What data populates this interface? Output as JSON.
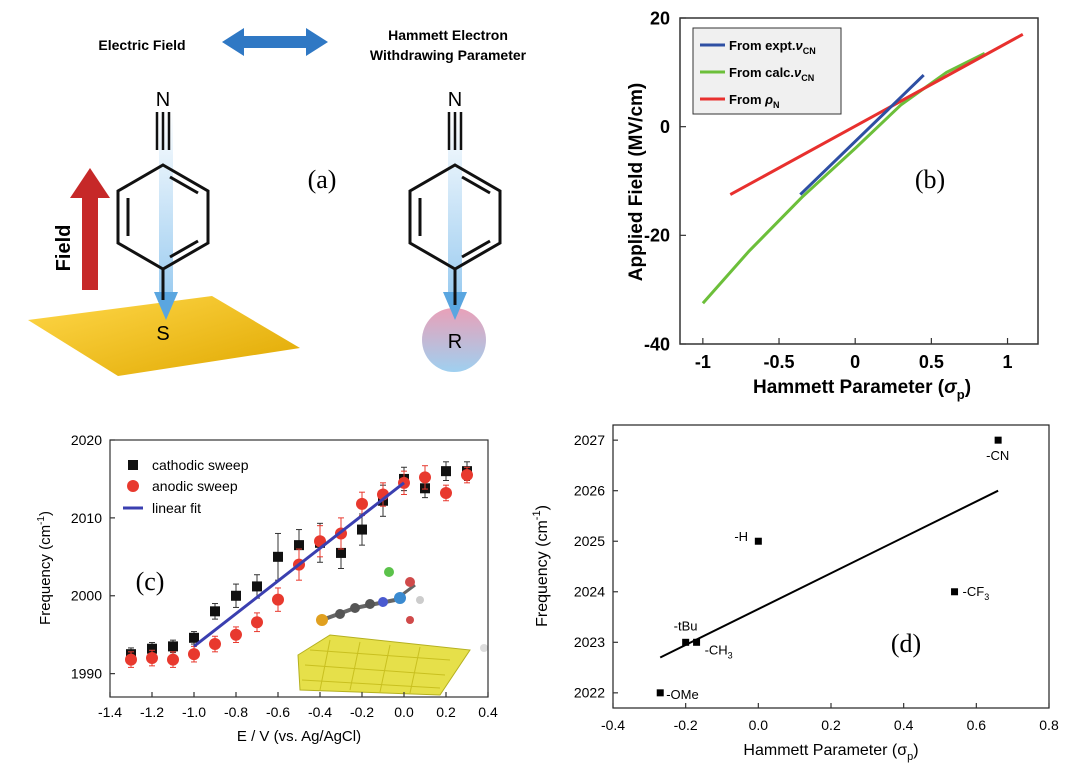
{
  "panel_a": {
    "label": "(a)",
    "left_title": "Electric Field",
    "right_title_line1": "Hammett Electron",
    "right_title_line2": "Withdrawing Parameter",
    "field_label": "Field",
    "nitrogen_left": "N",
    "nitrogen_right": "N",
    "sulfur": "S",
    "r_group": "R",
    "colors": {
      "surface": "#f2c21b",
      "field_arrow": "#c62828",
      "double_arrow": "#2f78c4",
      "bond_glow": "#8ec5ee"
    }
  },
  "chart_data": [
    {
      "id": "b",
      "type": "line",
      "panel_label": "(b)",
      "xlabel": "Hammett Parameter (",
      "xlabel_sym": "σ",
      "xlabel_sub": "p",
      "xlabel_close": ")",
      "ylabel": "Applied Field (MV/cm)",
      "xlim": [
        -1.15,
        1.2
      ],
      "ylim": [
        -40,
        20
      ],
      "xticks": [
        -1,
        -0.5,
        0,
        0.5,
        1
      ],
      "xtick_labels": [
        "-1",
        "-0.5",
        "0",
        "0.5",
        "1"
      ],
      "yticks": [
        -40,
        -20,
        0,
        20
      ],
      "ytick_labels": [
        "-40",
        "-20",
        "0",
        "20"
      ],
      "legend_position": "top-left",
      "legend": [
        {
          "prefix": "From expt.",
          "sym": "ν",
          "sub": "CN",
          "color": "#2e4fa3"
        },
        {
          "prefix": "From calc.",
          "sym": "ν",
          "sub": "CN",
          "color": "#6cbf3a"
        },
        {
          "prefix": "From ",
          "sym": "ρ",
          "sub": "N",
          "color": "#e8302e"
        }
      ],
      "series": [
        {
          "color": "#6cbf3a",
          "x": [
            -1.0,
            -0.7,
            -0.35,
            0.0,
            0.3,
            0.6,
            0.85
          ],
          "y": [
            -32.5,
            -23,
            -13,
            -4,
            4,
            10,
            13.5
          ]
        },
        {
          "color": "#e8302e",
          "x": [
            -0.82,
            1.1
          ],
          "y": [
            -12.5,
            17
          ]
        },
        {
          "color": "#2e4fa3",
          "x": [
            -0.36,
            0.45
          ],
          "y": [
            -12.5,
            9.5
          ]
        }
      ]
    },
    {
      "id": "c",
      "type": "scatter",
      "panel_label": "(c)",
      "xlabel": "E / V (vs. Ag/AgCl)",
      "ylabel": "Frequency (cm",
      "ylabel_sup": "-1",
      "ylabel_close": ")",
      "xlim": [
        -1.4,
        0.4
      ],
      "ylim": [
        1987,
        2020
      ],
      "xticks": [
        -1.4,
        -1.2,
        -1.0,
        -0.8,
        -0.6,
        -0.4,
        -0.2,
        0.0,
        0.2,
        0.4
      ],
      "xtick_labels": [
        "-1.4",
        "-1.2",
        "-1.0",
        "-0.8",
        "-0.6",
        "-0.4",
        "-0.2",
        "0.0",
        "0.2",
        "0.4"
      ],
      "yticks": [
        1990,
        2000,
        2010,
        2020
      ],
      "ytick_labels": [
        "1990",
        "2000",
        "2010",
        "2020"
      ],
      "legend_position": "top-left",
      "legend": [
        {
          "label": "cathodic sweep",
          "color": "#111111",
          "marker": "square"
        },
        {
          "label": "anodic sweep",
          "color": "#e8392e",
          "marker": "circle"
        },
        {
          "label": "linear fit",
          "color": "#3a3fb0",
          "marker": "line"
        }
      ],
      "series": [
        {
          "name": "cathodic sweep",
          "marker": "square",
          "color": "#111111",
          "x": [
            -1.3,
            -1.2,
            -1.1,
            -1.0,
            -0.9,
            -0.8,
            -0.7,
            -0.6,
            -0.5,
            -0.4,
            -0.3,
            -0.2,
            -0.1,
            0.0,
            0.1,
            0.2,
            0.3
          ],
          "y": [
            1992.5,
            1993.2,
            1993.5,
            1994.6,
            1998.0,
            2000.0,
            2001.2,
            2005.0,
            2006.5,
            2006.8,
            2005.5,
            2008.5,
            2012.2,
            2015.0,
            2013.8,
            2016.0,
            2016.0
          ],
          "err": [
            0.8,
            0.8,
            0.8,
            0.8,
            1.0,
            1.5,
            1.5,
            3.0,
            2.0,
            2.5,
            2.0,
            2.0,
            2.0,
            1.5,
            1.2,
            1.2,
            1.2
          ]
        },
        {
          "name": "anodic sweep",
          "marker": "circle",
          "color": "#e8392e",
          "x": [
            -1.3,
            -1.2,
            -1.1,
            -1.0,
            -0.9,
            -0.8,
            -0.7,
            -0.6,
            -0.5,
            -0.4,
            -0.3,
            -0.2,
            -0.1,
            0.0,
            0.1,
            0.2,
            0.3
          ],
          "y": [
            1991.8,
            1992.0,
            1991.8,
            1992.5,
            1993.8,
            1995.0,
            1996.6,
            1999.5,
            2004.0,
            2007.0,
            2008.0,
            2011.8,
            2013.0,
            2014.5,
            2015.2,
            2013.2,
            2015.5
          ],
          "err": [
            1.0,
            1.0,
            1.0,
            1.0,
            1.0,
            1.0,
            1.2,
            1.5,
            2.0,
            2.0,
            2.0,
            1.5,
            1.5,
            1.5,
            1.5,
            1.0,
            1.0
          ]
        },
        {
          "name": "linear fit",
          "marker": "line",
          "color": "#3a3fb0",
          "x": [
            -1.0,
            0.0
          ],
          "y": [
            1993.5,
            2014.5
          ]
        }
      ]
    },
    {
      "id": "d",
      "type": "scatter",
      "panel_label": "(d)",
      "xlabel": "Hammett Parameter (σ",
      "xlabel_sub": "p",
      "xlabel_close": ")",
      "ylabel": "Frequency (cm",
      "ylabel_sup": "-1",
      "ylabel_close": ")",
      "xlim": [
        -0.4,
        0.8
      ],
      "ylim": [
        2021.7,
        2027.3
      ],
      "xticks": [
        -0.4,
        -0.2,
        0.0,
        0.2,
        0.4,
        0.6,
        0.8
      ],
      "xtick_labels": [
        "-0.4",
        "-0.2",
        "0.0",
        "0.2",
        "0.4",
        "0.6",
        "0.8"
      ],
      "yticks": [
        2022,
        2023,
        2024,
        2025,
        2026,
        2027
      ],
      "ytick_labels": [
        "2022",
        "2023",
        "2024",
        "2025",
        "2026",
        "2027"
      ],
      "points": [
        {
          "x": -0.27,
          "y": 2022.0,
          "label": "-OMe",
          "sub": ""
        },
        {
          "x": -0.2,
          "y": 2023.0,
          "label": "-tBu",
          "sub": ""
        },
        {
          "x": -0.17,
          "y": 2023.0,
          "label": "-CH",
          "sub": "3"
        },
        {
          "x": 0.0,
          "y": 2025.0,
          "label": "-H",
          "sub": ""
        },
        {
          "x": 0.54,
          "y": 2024.0,
          "label": "-CF",
          "sub": "3"
        },
        {
          "x": 0.66,
          "y": 2027.0,
          "label": "-CN",
          "sub": ""
        }
      ],
      "fit_line": {
        "x": [
          -0.27,
          0.66
        ],
        "y": [
          2022.7,
          2026.0
        ]
      }
    }
  ]
}
